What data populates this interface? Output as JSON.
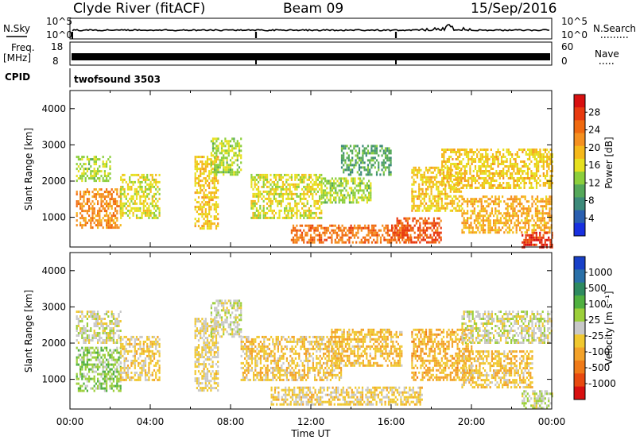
{
  "header": {
    "title": "Clyde River (fitACF)",
    "beam": "Beam 09",
    "date": "15/Sep/2016"
  },
  "nsky_panel": {
    "left_label": "N.Sky",
    "left_ticks": [
      "10^5",
      "10^0"
    ],
    "right_label": "N.Search",
    "right_ticks": [
      "10^5",
      "10^0"
    ]
  },
  "freq_panel": {
    "left_label_line1": "Freq.",
    "left_label_line2": "[MHz]",
    "left_ticks": [
      "18",
      "8"
    ],
    "right_label": "Nave",
    "right_ticks": [
      "60",
      "0"
    ]
  },
  "cpid": {
    "label": "CPID",
    "program": "twofsound 3503"
  },
  "power_panel": {
    "ylabel": "Slant Range [km]",
    "yticks": [
      "1000",
      "2000",
      "3000",
      "4000"
    ],
    "colorbar_label": "Power [dB]",
    "colorbar_ticks": [
      "4",
      "8",
      "12",
      "16",
      "20",
      "24",
      "28"
    ],
    "colorbar_colors": [
      "#1830e0",
      "#2a5fb0",
      "#3d8a7a",
      "#55a85a",
      "#8ccf3c",
      "#e6e020",
      "#f5b81a",
      "#f59020",
      "#f06a10",
      "#e83a10",
      "#d81010"
    ]
  },
  "velocity_panel": {
    "ylabel": "Slant Range [km]",
    "yticks": [
      "1000",
      "2000",
      "3000",
      "4000"
    ],
    "colorbar_label": "Velocity [m s⁻¹]",
    "colorbar_ticks": [
      "1000",
      "500",
      "100",
      "25",
      "-25",
      "-100",
      "-500",
      "-1000"
    ],
    "colorbar_colors": [
      "#1840c8",
      "#2a70a8",
      "#2e8a60",
      "#50b040",
      "#9ccf3a",
      "#c8c8c8",
      "#f0c830",
      "#f3a22a",
      "#ef7a18",
      "#e84a10",
      "#d81010"
    ]
  },
  "x_axis": {
    "ticks": [
      "00:00",
      "04:00",
      "08:00",
      "12:00",
      "16:00",
      "20:00",
      "00:00"
    ],
    "label": "Time UT"
  },
  "chart_data": [
    {
      "type": "heatmap",
      "title": "Clyde River (fitACF) Beam 09 15/Sep/2016",
      "xlabel": "Time UT",
      "ylabel": "Slant Range [km]",
      "colorbar": "Power [dB]",
      "x_range_hours": [
        0,
        24
      ],
      "y_range_km": [
        180,
        4500
      ],
      "z_range": [
        0,
        32
      ],
      "regions": [
        {
          "t": [
            0.3,
            2.0
          ],
          "r": [
            2000,
            2700
          ],
          "value": 14
        },
        {
          "t": [
            0.3,
            2.5
          ],
          "r": [
            700,
            1800
          ],
          "value": 22
        },
        {
          "t": [
            2.5,
            4.5
          ],
          "r": [
            1000,
            2200
          ],
          "value": 16
        },
        {
          "t": [
            6.2,
            7.4
          ],
          "r": [
            700,
            2700
          ],
          "value": 18
        },
        {
          "t": [
            7.0,
            8.5
          ],
          "r": [
            2200,
            3200
          ],
          "value": 14
        },
        {
          "t": [
            9.0,
            12.5
          ],
          "r": [
            1000,
            2200
          ],
          "value": 16
        },
        {
          "t": [
            12.5,
            15.0
          ],
          "r": [
            1400,
            2100
          ],
          "value": 14
        },
        {
          "t": [
            13.5,
            16.0
          ],
          "r": [
            2200,
            3000
          ],
          "value": 10
        },
        {
          "t": [
            11.0,
            17.0
          ],
          "r": [
            300,
            800
          ],
          "value": 24
        },
        {
          "t": [
            16.0,
            18.5
          ],
          "r": [
            300,
            1000
          ],
          "value": 26
        },
        {
          "t": [
            17.0,
            19.5
          ],
          "r": [
            1200,
            2400
          ],
          "value": 18
        },
        {
          "t": [
            18.5,
            24.0
          ],
          "r": [
            1800,
            2900
          ],
          "value": 18
        },
        {
          "t": [
            19.5,
            24.0
          ],
          "r": [
            600,
            1600
          ],
          "value": 20
        },
        {
          "t": [
            22.5,
            24.0
          ],
          "r": [
            200,
            600
          ],
          "value": 28
        }
      ]
    },
    {
      "type": "heatmap",
      "title": "Clyde River (fitACF) Beam 09 15/Sep/2016",
      "xlabel": "Time UT",
      "ylabel": "Slant Range [km]",
      "colorbar": "Velocity [m s-1]",
      "x_range_hours": [
        0,
        24
      ],
      "y_range_km": [
        180,
        4500
      ],
      "z_range": [
        -1000,
        1000
      ],
      "regions": [
        {
          "t": [
            0.3,
            2.5
          ],
          "r": [
            2000,
            2900
          ],
          "value": 0
        },
        {
          "t": [
            0.3,
            2.5
          ],
          "r": [
            700,
            1900
          ],
          "value": 200
        },
        {
          "t": [
            2.5,
            4.5
          ],
          "r": [
            1000,
            2200
          ],
          "value": -150
        },
        {
          "t": [
            6.2,
            7.4
          ],
          "r": [
            700,
            2700
          ],
          "value": -100
        },
        {
          "t": [
            7.0,
            8.5
          ],
          "r": [
            2200,
            3200
          ],
          "value": 0
        },
        {
          "t": [
            8.5,
            13.5
          ],
          "r": [
            1000,
            2200
          ],
          "value": -200
        },
        {
          "t": [
            13.0,
            16.5
          ],
          "r": [
            1400,
            2400
          ],
          "value": -250
        },
        {
          "t": [
            10.0,
            17.5
          ],
          "r": [
            300,
            800
          ],
          "value": -150
        },
        {
          "t": [
            17.0,
            20.0
          ],
          "r": [
            1000,
            2400
          ],
          "value": -300
        },
        {
          "t": [
            19.5,
            24.0
          ],
          "r": [
            2000,
            2900
          ],
          "value": 0
        },
        {
          "t": [
            19.5,
            23.0
          ],
          "r": [
            800,
            1800
          ],
          "value": -200
        },
        {
          "t": [
            22.5,
            24.0
          ],
          "r": [
            200,
            700
          ],
          "value": 50
        }
      ]
    }
  ]
}
